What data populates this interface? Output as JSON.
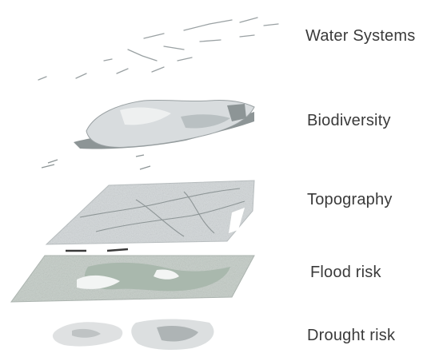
{
  "layers": [
    {
      "id": "water",
      "label": "Water Systems"
    },
    {
      "id": "biodiversity",
      "label": "Biodiversity"
    },
    {
      "id": "topography",
      "label": "Topography"
    },
    {
      "id": "flood",
      "label": "Flood risk"
    },
    {
      "id": "drought",
      "label": "Drought risk"
    }
  ],
  "colors": {
    "label_text": "#3a3a3a",
    "map_light": "#e4e7e8",
    "map_mid": "#c9ced0",
    "map_dark": "#8d9596",
    "flood_green": "#a9b8ad"
  }
}
